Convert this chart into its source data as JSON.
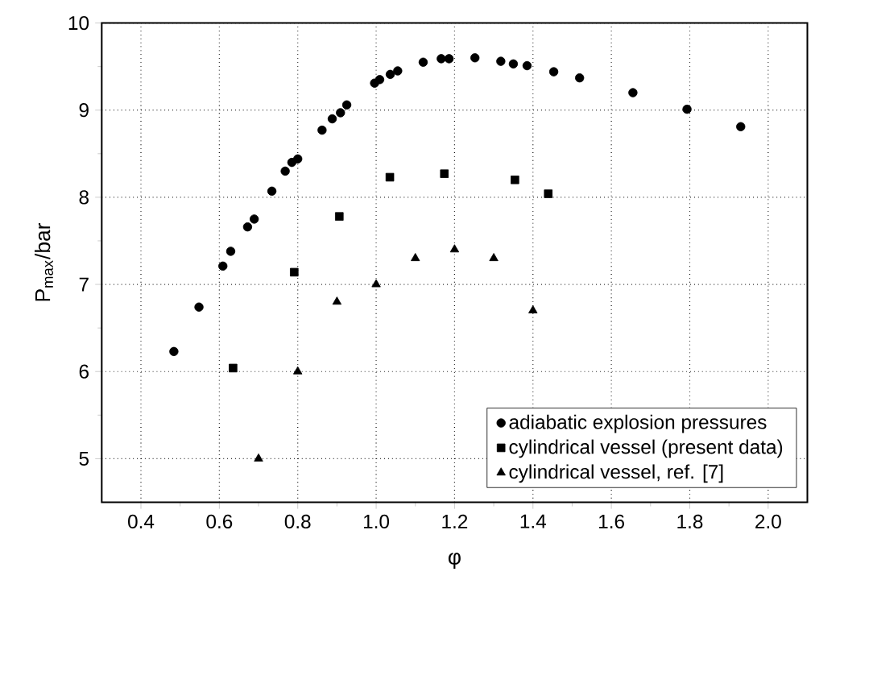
{
  "chart_data": {
    "type": "scatter",
    "xlabel": "φ",
    "ylabel": "P$_{max}$/bar",
    "xlim": [
      0.3,
      2.1
    ],
    "ylim": [
      4.5,
      10
    ],
    "xticks": [
      0.4,
      0.6,
      0.8,
      {
        "value": 1,
        "label": "1.0"
      },
      1.2,
      1.4,
      1.6,
      1.8,
      {
        "value": 2,
        "label": "2.0"
      }
    ],
    "yticks": [
      5,
      6,
      7,
      8,
      9,
      10
    ],
    "grid": true,
    "legend": "bottom right",
    "series": [
      {
        "name": "adiabatic explosion pressures",
        "color": "#000000",
        "marker": "circle",
        "x": [
          0.484,
          0.548,
          0.609,
          0.629,
          0.672,
          0.689,
          0.734,
          0.768,
          0.785,
          0.8,
          0.862,
          0.888,
          0.909,
          0.925,
          0.996,
          1.009,
          1.036,
          1.055,
          1.12,
          1.166,
          1.186,
          1.252,
          1.318,
          1.35,
          1.385,
          1.453,
          1.519,
          1.655,
          1.793,
          1.93
        ],
        "values": [
          6.23,
          6.74,
          7.21,
          7.38,
          7.66,
          7.75,
          8.07,
          8.3,
          8.4,
          8.44,
          8.77,
          8.9,
          8.97,
          9.06,
          9.31,
          9.35,
          9.41,
          9.45,
          9.55,
          9.59,
          9.59,
          9.6,
          9.56,
          9.53,
          9.51,
          9.44,
          9.37,
          9.2,
          9.01,
          8.81
        ]
      },
      {
        "name": "cylindrical vessel (present data)",
        "color": "#000000",
        "marker": "square",
        "x": [
          0.635,
          0.791,
          0.906,
          1.035,
          1.174,
          1.354,
          1.439
        ],
        "values": [
          6.04,
          7.14,
          7.78,
          8.23,
          8.27,
          8.2,
          8.04
        ]
      },
      {
        "name": "cylindrical vessel, ref. [7]",
        "color": "#000000",
        "marker": "triangle",
        "x": [
          0.7,
          0.8,
          0.9,
          1.0,
          1.1,
          1.2,
          1.3,
          1.4
        ],
        "values": [
          5.0,
          6.0,
          6.8,
          7.0,
          7.3,
          7.4,
          7.3,
          6.7
        ]
      }
    ]
  }
}
